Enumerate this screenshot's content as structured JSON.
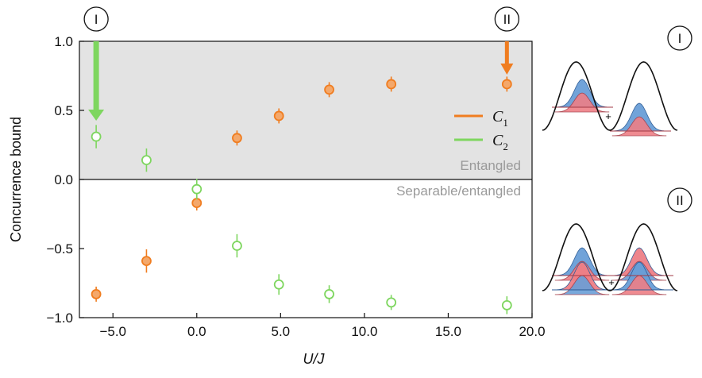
{
  "chart_data": {
    "type": "scatter",
    "xlabel": "U/J",
    "ylabel": "Concurrence bound",
    "xlim": [
      -7,
      20
    ],
    "ylim": [
      -1,
      1
    ],
    "xticks": [
      "−5.0",
      "0.0",
      "5.0",
      "10.0",
      "15.0",
      "20.0"
    ],
    "yticks": [
      "1.0",
      "0.5",
      "0.0",
      "−0.5",
      "−1.0"
    ],
    "xtick_values": [
      -5,
      0,
      5,
      10,
      15,
      20
    ],
    "ytick_values": [
      1,
      0.5,
      0,
      -0.5,
      -1
    ],
    "shaded_region": {
      "from": 0,
      "to": 1,
      "color": "#e3e3e3"
    },
    "region_labels": {
      "upper": "Entangled",
      "lower": "Separable/entangled"
    },
    "grid": false,
    "legend_placement": "center-right",
    "series": [
      {
        "name": "C1",
        "display": "C",
        "subscript": "1",
        "color": "#f07d20",
        "fill": "#f4a86b",
        "marker": "filled-circle",
        "points": [
          {
            "x": -6.0,
            "y": -0.83,
            "err": 0.02
          },
          {
            "x": -3.0,
            "y": -0.59,
            "err": 0.05
          },
          {
            "x": 0.0,
            "y": -0.17,
            "err": 0.02
          },
          {
            "x": 2.4,
            "y": 0.3,
            "err": 0.02
          },
          {
            "x": 4.9,
            "y": 0.46,
            "err": 0.02
          },
          {
            "x": 7.9,
            "y": 0.65,
            "err": 0.02
          },
          {
            "x": 11.6,
            "y": 0.69,
            "err": 0.02
          },
          {
            "x": 18.5,
            "y": 0.69,
            "err": 0.02
          }
        ]
      },
      {
        "name": "C2",
        "display": "C",
        "subscript": "2",
        "color": "#7ed65f",
        "fill": "#ffffff",
        "marker": "open-circle",
        "points": [
          {
            "x": -6.0,
            "y": 0.31,
            "err": 0.05
          },
          {
            "x": -3.0,
            "y": 0.14,
            "err": 0.05
          },
          {
            "x": 0.0,
            "y": -0.07,
            "err": 0.04
          },
          {
            "x": 2.4,
            "y": -0.48,
            "err": 0.05
          },
          {
            "x": 4.9,
            "y": -0.76,
            "err": 0.04
          },
          {
            "x": 7.9,
            "y": -0.83,
            "err": 0.03
          },
          {
            "x": 11.6,
            "y": -0.89,
            "err": 0.02
          },
          {
            "x": 18.5,
            "y": -0.91,
            "err": 0.03
          }
        ]
      }
    ],
    "annotations": [
      {
        "label": "I",
        "x": -6.0,
        "arrow_color": "#7ed65f"
      },
      {
        "label": "II",
        "x": 18.5,
        "arrow_color": "#f07d20"
      }
    ],
    "insets": [
      {
        "label": "I"
      },
      {
        "label": "II"
      }
    ],
    "inset_colors": {
      "blue": "#6a9fd8",
      "red": "#ee7f86"
    }
  }
}
